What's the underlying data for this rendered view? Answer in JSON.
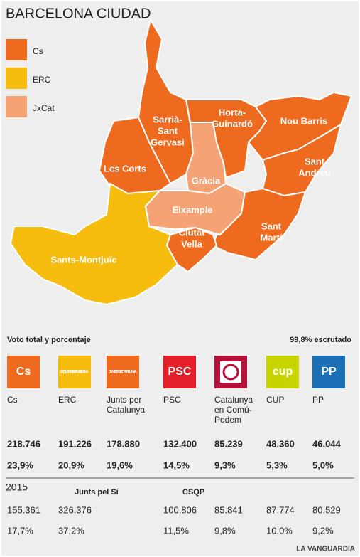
{
  "title": "BARCELONA CIUDAD",
  "legend": [
    {
      "label": "Cs",
      "color": "#ee6a1f"
    },
    {
      "label": "ERC",
      "color": "#f6bd0e"
    },
    {
      "label": "JxCat",
      "color": "#f5a274"
    }
  ],
  "map": {
    "districts": [
      {
        "lines": [
          "Sarrià-",
          "Sant",
          "Gervasi"
        ],
        "color": "#ee6a1f"
      },
      {
        "lines": [
          "Les Corts"
        ],
        "color": "#ee6a1f"
      },
      {
        "lines": [
          "Sants-Montjuïc"
        ],
        "color": "#f6bd0e"
      },
      {
        "lines": [
          "Gràcia"
        ],
        "color": "#f5a274"
      },
      {
        "lines": [
          "Horta-",
          "Guinardó"
        ],
        "color": "#ee6a1f"
      },
      {
        "lines": [
          "Nou Barris"
        ],
        "color": "#ee6a1f"
      },
      {
        "lines": [
          "Sant",
          "Andreu"
        ],
        "color": "#ee6a1f"
      },
      {
        "lines": [
          "Eixample"
        ],
        "color": "#f5a274"
      },
      {
        "lines": [
          "Sant",
          "Martí"
        ],
        "color": "#ee6a1f"
      },
      {
        "lines": [
          "Ciutat",
          "Vella"
        ],
        "color": "#ee6a1f"
      }
    ]
  },
  "table": {
    "heading": "Voto total y porcentaje",
    "status": "99,8% escrutado",
    "parties": [
      {
        "lines": [
          "Cs"
        ],
        "logo": "Cs",
        "logo_color": "#ee6a1f",
        "votes": "218.746",
        "percent": "23,9%"
      },
      {
        "lines": [
          "ERC"
        ],
        "logo": "ESQUERRA REPUBLICANA",
        "logo_color": "#f6bd0e",
        "votes": "191.226",
        "percent": "20,9%"
      },
      {
        "lines": [
          "Junts per",
          "Catalunya"
        ],
        "logo": "JUNTS PER CATALUNYA",
        "logo_color": "#ee6a1f",
        "votes": "178.880",
        "percent": "19,6%"
      },
      {
        "lines": [
          "PSC"
        ],
        "logo": "PSC",
        "logo_color": "#e3202a",
        "votes": "132.400",
        "percent": "14,5%"
      },
      {
        "lines": [
          "Catalunya",
          "en Comú-",
          "Podem"
        ],
        "logo": null,
        "logo_color": "#b5123a",
        "votes": "85.239",
        "percent": "9,3%"
      },
      {
        "lines": [
          "CUP"
        ],
        "logo": "cup",
        "logo_color": "#c8d400",
        "votes": "48.360",
        "percent": "5,3%"
      },
      {
        "lines": [
          "PP"
        ],
        "logo": "PP",
        "logo_color": "#1a6fb5",
        "votes": "46.044",
        "percent": "5,0%"
      }
    ],
    "previous": {
      "year": "2015",
      "labels": [
        null,
        null,
        "Junts pel Sí",
        null,
        "CSQP",
        null,
        null
      ],
      "votes": [
        "155.361",
        "326.376",
        null,
        "100.806",
        "85.841",
        "87.774",
        "80.529"
      ],
      "percent": [
        "17,7%",
        "37,2%",
        null,
        "11,5%",
        "9,8%",
        "10,0%",
        "9,2%"
      ]
    }
  },
  "footer": "LA VANGUARDIA"
}
